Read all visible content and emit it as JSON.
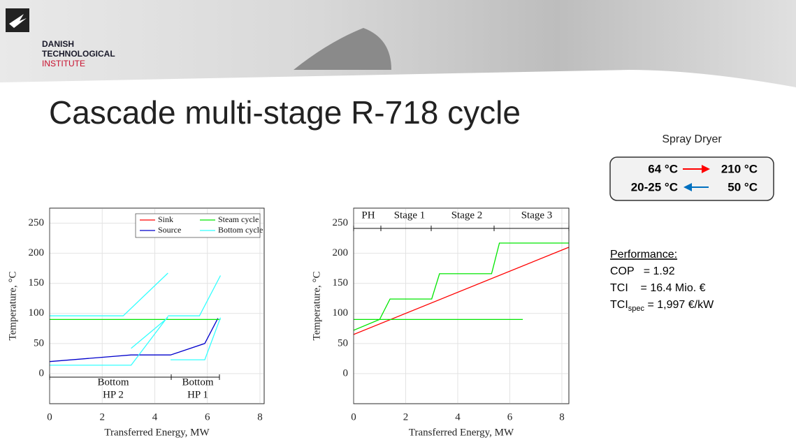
{
  "header": {
    "logo_line1": "DANISH",
    "logo_line2": "TECHNOLOGICAL",
    "logo_line3": "INSTITUTE"
  },
  "title": "Cascade multi-stage R-718 cycle",
  "spray_dryer": {
    "title": "Spray Dryer",
    "hot_in": "64 °C",
    "hot_out": "210 °C",
    "cold_out": "20-25 °C",
    "cold_in": "50 °C"
  },
  "performance": {
    "heading": "Performance:",
    "cop": "COP   = 1.92",
    "tci": "TCI    = 16.4 Mio. €",
    "tci_spec_main": "TCI",
    "tci_spec_sub": "spec",
    "tci_spec_value": " = 1,997 €/kW"
  },
  "chart_data": [
    {
      "type": "line",
      "xlabel": "Transferred Energy, MW",
      "ylabel": "Temperature, °C",
      "xlim": [
        0,
        8.16
      ],
      "ylim": [
        -50,
        275
      ],
      "xticks": [
        0,
        2,
        4,
        6,
        8
      ],
      "yticks": [
        0,
        50,
        100,
        150,
        200,
        250
      ],
      "grid": true,
      "legend": "upper right",
      "annotations": [
        "Bottom",
        "HP 2",
        "Bottom",
        "HP 1"
      ],
      "series": [
        {
          "name": "Sink",
          "color": "#ff0000",
          "x": [],
          "y": []
        },
        {
          "name": "Source",
          "color": "#0000cc",
          "x": [
            0,
            3.1,
            4.6,
            5.9,
            6.4
          ],
          "y": [
            20,
            31,
            31,
            50,
            92
          ]
        },
        {
          "name": "Steam cycle",
          "color": "#00e600",
          "x": [
            0,
            6.5
          ],
          "y": [
            90,
            90
          ]
        },
        {
          "name": "Bottom cycle",
          "color": "#33ffff",
          "x": [
            0,
            2.8,
            4.5,
            null,
            0,
            3.1,
            4.5,
            null,
            3.1,
            4.5,
            null,
            4.5,
            5.7,
            6.5,
            null,
            4.6,
            5.9,
            6.5
          ],
          "y": [
            96,
            96,
            167,
            null,
            14,
            14,
            95,
            null,
            42,
            93,
            null,
            96,
            96,
            163,
            null,
            23,
            23,
            93
          ]
        }
      ]
    },
    {
      "type": "line",
      "xlabel": "Transferred Energy, MW",
      "ylabel": "Temperature, °C",
      "xlim": [
        0,
        8.27
      ],
      "ylim": [
        -50,
        275
      ],
      "xticks": [
        0,
        2,
        4,
        6,
        8
      ],
      "yticks": [
        0,
        50,
        100,
        150,
        200,
        250
      ],
      "grid": true,
      "annotations": [
        "PH",
        "Stage 1",
        "Stage 2",
        "Stage 3"
      ],
      "series": [
        {
          "color": "#ff0000",
          "x": [
            0,
            8.27
          ],
          "y": [
            65,
            210
          ]
        },
        {
          "color": "#00e600",
          "x": [
            0,
            1,
            1.4,
            3,
            3.3,
            5.3,
            5.6,
            8.27,
            null,
            0,
            6.5
          ],
          "y": [
            72,
            90,
            124,
            124,
            166,
            166,
            217,
            217,
            null,
            90,
            90
          ]
        }
      ]
    }
  ]
}
